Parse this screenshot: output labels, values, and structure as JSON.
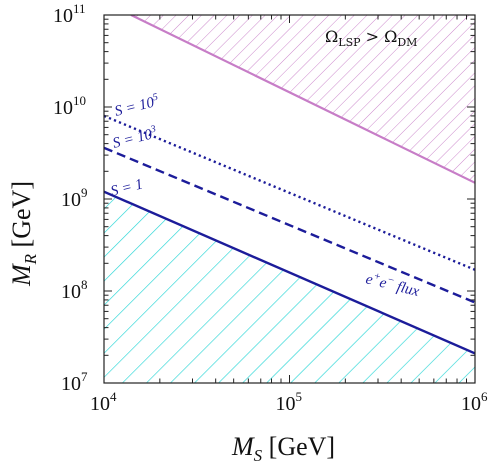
{
  "chart_data": {
    "type": "line",
    "xscale": "log",
    "yscale": "log",
    "xlim": [
      10000,
      1000000
    ],
    "ylim": [
      10000000,
      100000000000
    ],
    "xlabel": {
      "main": "M",
      "sub": "S",
      "unit": " [GeV]"
    },
    "ylabel": {
      "main": "M",
      "sub": "R",
      "unit": " [GeV]"
    },
    "xticks": [
      {
        "value": 10000,
        "base": "10",
        "exp": "4"
      },
      {
        "value": 100000,
        "base": "10",
        "exp": "5"
      },
      {
        "value": 1000000,
        "base": "10",
        "exp": "6"
      }
    ],
    "yticks": [
      {
        "value": 10000000,
        "base": "10",
        "exp": "7"
      },
      {
        "value": 100000000,
        "base": "10",
        "exp": "8"
      },
      {
        "value": 1000000000,
        "base": "10",
        "exp": "9"
      },
      {
        "value": 10000000000,
        "base": "10",
        "exp": "10"
      },
      {
        "value": 100000000000,
        "base": "10",
        "exp": "11"
      }
    ],
    "series": [
      {
        "key": "relic",
        "x": [
          14000,
          1000000
        ],
        "y": [
          100000000000,
          1500000000
        ],
        "style": "solid",
        "color": "#c77dc7",
        "width": 2.2
      },
      {
        "key": "s1e5",
        "x": [
          10000,
          1000000
        ],
        "y": [
          8000000000,
          170000000
        ],
        "style": "dotted",
        "color": "#1c1c9a",
        "width": 2.4
      },
      {
        "key": "s1e3",
        "x": [
          10000,
          1000000
        ],
        "y": [
          3600000000,
          75000000
        ],
        "style": "dashed",
        "color": "#1c1c9a",
        "width": 2.4
      },
      {
        "key": "s1",
        "x": [
          10000,
          1000000
        ],
        "y": [
          1200000000,
          21000000
        ],
        "style": "solid",
        "color": "#1c1c9a",
        "width": 2.4
      }
    ],
    "regions": [
      {
        "key": "relic_excluded",
        "bound": "relic",
        "side": "above",
        "hatch_color": "#c77dc7"
      },
      {
        "key": "flux_excluded",
        "bound": "s1",
        "side": "below",
        "hatch_color": "#2ad6d6"
      }
    ],
    "annotations": {
      "relic": "Ω_LSP > Ω_DM",
      "flux": "e⁺e⁻ flux",
      "s1e5": "S = 10⁵",
      "s1e3": "S = 10³",
      "s1": "S = 1"
    }
  }
}
